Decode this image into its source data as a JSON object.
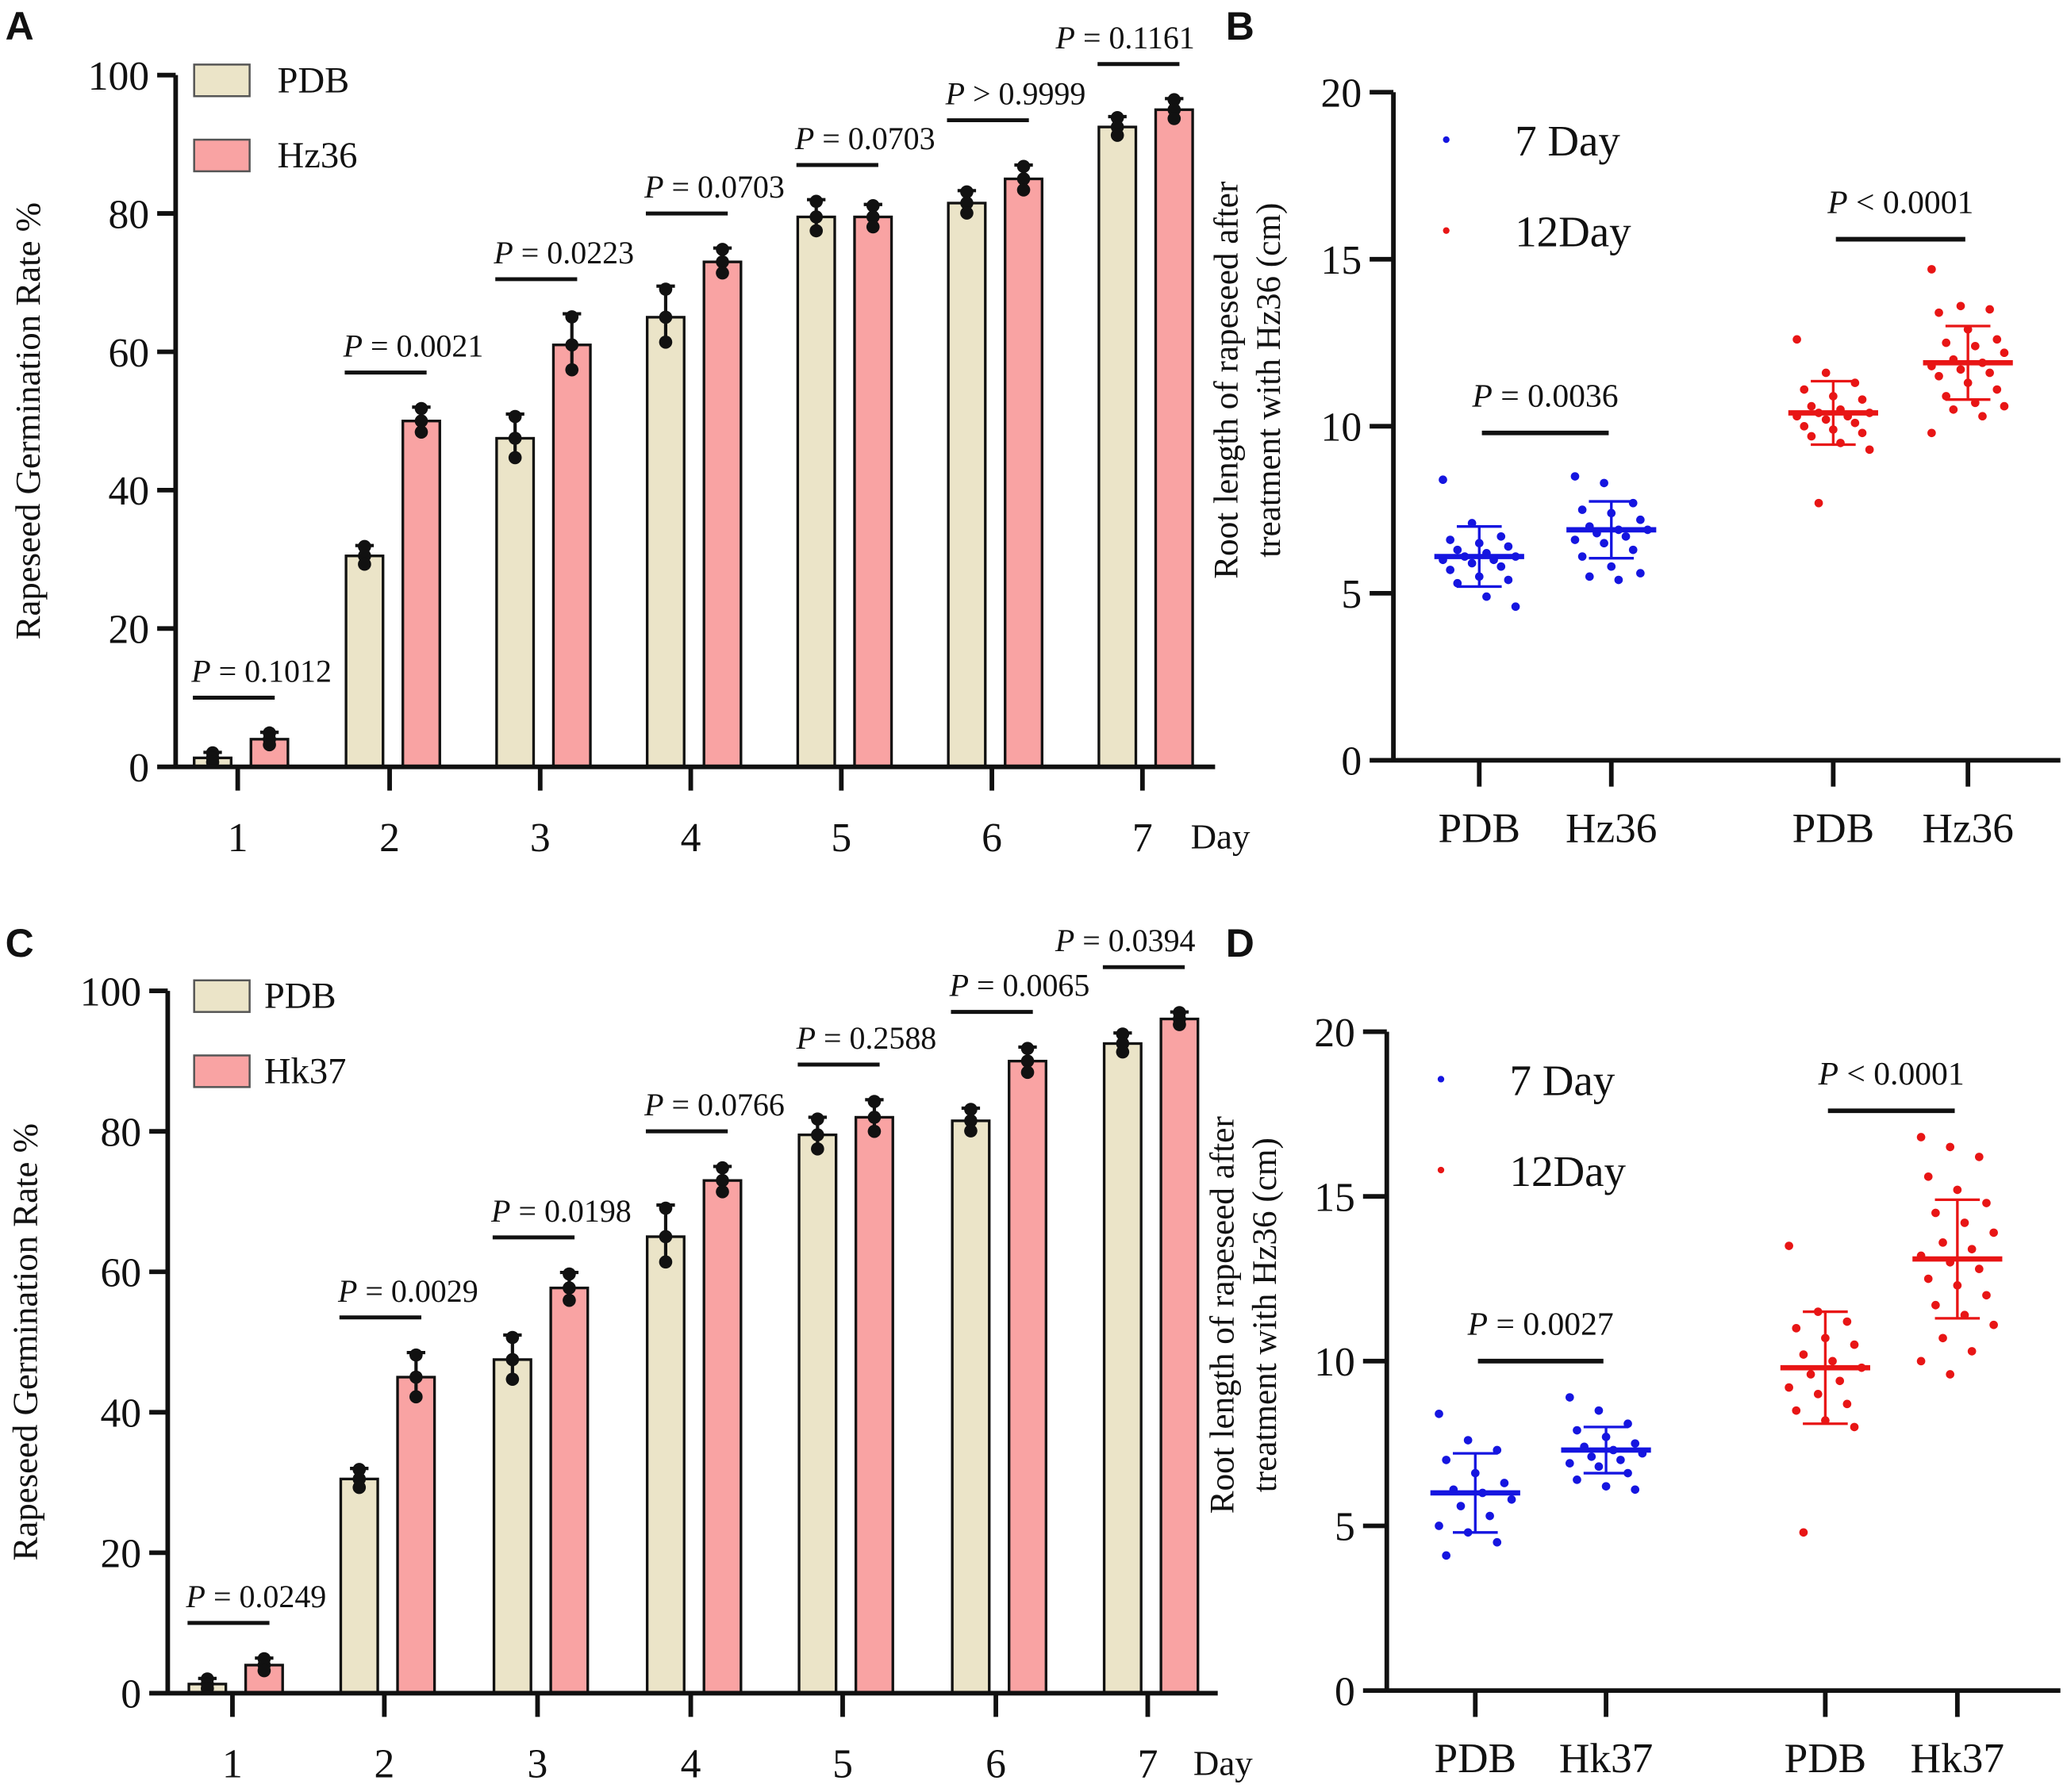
{
  "chart_data": [
    {
      "panel": "A",
      "type": "bar",
      "title": "",
      "xlabel": "Day",
      "ylabel": "Rapeseed Germination Rate %",
      "ylim": [
        0,
        100
      ],
      "yticks": [
        0,
        20,
        40,
        60,
        80,
        100
      ],
      "categories": [
        "1",
        "2",
        "3",
        "4",
        "5",
        "6",
        "7"
      ],
      "legend": [
        "PDB",
        "Hz36"
      ],
      "legend_placement": "top-left",
      "colors": [
        "#ebe4c8",
        "#f9a3a3"
      ],
      "series": [
        {
          "name": "PDB",
          "values": [
            1.3,
            30.5,
            47.5,
            65,
            79.5,
            81.5,
            92.5
          ],
          "sd": [
            0.8,
            1.5,
            3.5,
            4.5,
            2.5,
            1.8,
            1.5
          ]
        },
        {
          "name": "Hz36",
          "values": [
            4,
            50,
            61,
            73,
            79.5,
            85,
            95
          ],
          "sd": [
            1,
            2,
            4.5,
            2,
            1.8,
            2,
            1.6
          ]
        }
      ],
      "p_values": [
        "P = 0.1012",
        "P = 0.0021",
        "P = 0.0223",
        "P = 0.0703",
        "P = 0.0703",
        "P > 0.9999",
        "P = 0.1161"
      ]
    },
    {
      "panel": "B",
      "type": "scatter",
      "ylabel": [
        "Root length of rapeseed after",
        "treatment with Hz36 (cm)"
      ],
      "ylim": [
        0,
        20
      ],
      "yticks": [
        0,
        5,
        10,
        15,
        20
      ],
      "categories": [
        "PDB",
        "Hz36",
        "PDB",
        "Hz36"
      ],
      "legend": [
        {
          "label": "7  Day",
          "color": "#1515e0"
        },
        {
          "label": "12Day",
          "color": "#e81515"
        }
      ],
      "legend_placement": "top-left",
      "groups": [
        {
          "day": "7  Day",
          "color": "#1515e0",
          "mean": 6.1,
          "sd": 0.9,
          "points": [
            8.4,
            7.1,
            6.7,
            6.6,
            6.5,
            6.4,
            6.3,
            6.2,
            6.1,
            6.1,
            6.0,
            6.0,
            5.9,
            5.8,
            5.7,
            5.5,
            5.4,
            5.3,
            4.9,
            4.6
          ]
        },
        {
          "day": "7  Day",
          "color": "#1515e0",
          "mean": 6.9,
          "sd": 0.85,
          "points": [
            8.5,
            8.3,
            7.7,
            7.5,
            7.4,
            7.2,
            7.0,
            6.9,
            6.9,
            6.8,
            6.7,
            6.6,
            6.5,
            6.3,
            6.1,
            5.8,
            5.6,
            5.5,
            5.4
          ]
        },
        {
          "day": "12Day",
          "color": "#e81515",
          "mean": 10.4,
          "sd": 0.95,
          "points": [
            12.6,
            11.6,
            11.3,
            11.1,
            10.9,
            10.8,
            10.6,
            10.5,
            10.4,
            10.4,
            10.3,
            10.3,
            10.2,
            10.1,
            10.0,
            9.9,
            9.8,
            9.7,
            9.5,
            9.3,
            7.7
          ]
        },
        {
          "day": "12Day",
          "color": "#e81515",
          "mean": 11.9,
          "sd": 1.1,
          "points": [
            14.7,
            13.6,
            13.5,
            13.4,
            12.9,
            12.6,
            12.5,
            12.4,
            12.2,
            12.0,
            11.9,
            11.8,
            11.7,
            11.6,
            11.5,
            11.3,
            11.1,
            10.9,
            10.7,
            10.6,
            10.5,
            10.3,
            9.8
          ]
        }
      ],
      "comparisons": [
        {
          "groups": [
            0,
            1
          ],
          "y": 9.8,
          "label": "P = 0.0036"
        },
        {
          "groups": [
            2,
            3
          ],
          "y": 15.6,
          "label": "P < 0.0001"
        }
      ]
    },
    {
      "panel": "C",
      "type": "bar",
      "title": "",
      "xlabel": "Day",
      "ylabel": "Rapeseed Germination Rate %",
      "ylim": [
        0,
        100
      ],
      "yticks": [
        0,
        20,
        40,
        60,
        80,
        100
      ],
      "categories": [
        "1",
        "2",
        "3",
        "4",
        "5",
        "6",
        "7"
      ],
      "legend": [
        "PDB",
        "Hk37"
      ],
      "legend_placement": "top-left",
      "colors": [
        "#ebe4c8",
        "#f9a3a3"
      ],
      "series": [
        {
          "name": "PDB",
          "values": [
            1.3,
            30.5,
            47.5,
            65,
            79.5,
            81.5,
            92.5
          ],
          "sd": [
            0.8,
            1.5,
            3.5,
            4.5,
            2.5,
            1.8,
            1.5
          ]
        },
        {
          "name": "Hk37",
          "values": [
            4,
            45,
            57.7,
            73,
            82,
            90,
            96
          ],
          "sd": [
            1,
            3.5,
            2.2,
            2,
            2.5,
            2,
            1
          ]
        }
      ],
      "p_values": [
        "P = 0.0249",
        "P = 0.0029",
        "P = 0.0198",
        "P = 0.0766",
        "P = 0.2588",
        "P = 0.0065",
        "P = 0.0394"
      ]
    },
    {
      "panel": "D",
      "type": "scatter",
      "ylabel": [
        "Root length of rapeseed after",
        "treatment with Hz36 (cm)"
      ],
      "ylim": [
        0,
        20
      ],
      "yticks": [
        0,
        5,
        10,
        15,
        20
      ],
      "categories": [
        "PDB",
        "Hk37",
        "PDB",
        "Hk37"
      ],
      "legend": [
        {
          "label": "7  Day",
          "color": "#1515e0"
        },
        {
          "label": "12Day",
          "color": "#e81515"
        }
      ],
      "legend_placement": "top-left",
      "groups": [
        {
          "day": "7  Day",
          "color": "#1515e0",
          "mean": 6.0,
          "sd": 1.2,
          "points": [
            8.4,
            7.6,
            7.3,
            7.0,
            6.6,
            6.3,
            6.1,
            6.0,
            5.8,
            5.6,
            5.3,
            5.0,
            4.8,
            4.5,
            4.1
          ]
        },
        {
          "day": "7  Day",
          "color": "#1515e0",
          "mean": 7.3,
          "sd": 0.7,
          "points": [
            8.9,
            8.5,
            8.1,
            7.9,
            7.7,
            7.5,
            7.4,
            7.3,
            7.2,
            7.1,
            7.0,
            6.9,
            6.8,
            6.6,
            6.4,
            6.2,
            6.1
          ]
        },
        {
          "day": "12Day",
          "color": "#e81515",
          "mean": 9.8,
          "sd": 1.7,
          "points": [
            13.5,
            11.5,
            11.2,
            11.0,
            10.7,
            10.5,
            10.2,
            10.0,
            9.8,
            9.6,
            9.4,
            9.2,
            9.0,
            8.7,
            8.5,
            8.2,
            8.0,
            4.8
          ]
        },
        {
          "day": "12Day",
          "color": "#e81515",
          "mean": 13.1,
          "sd": 1.8,
          "points": [
            16.8,
            16.5,
            16.2,
            15.6,
            15.2,
            14.8,
            14.5,
            14.2,
            13.9,
            13.6,
            13.4,
            13.2,
            13.0,
            12.8,
            12.5,
            12.3,
            12.0,
            11.7,
            11.4,
            11.1,
            10.7,
            10.3,
            10.0,
            9.6
          ]
        }
      ],
      "comparisons": [
        {
          "groups": [
            0,
            1
          ],
          "y": 10.0,
          "label": "P = 0.0027"
        },
        {
          "groups": [
            2,
            3
          ],
          "y": 17.6,
          "label": "P < 0.0001"
        }
      ]
    }
  ]
}
